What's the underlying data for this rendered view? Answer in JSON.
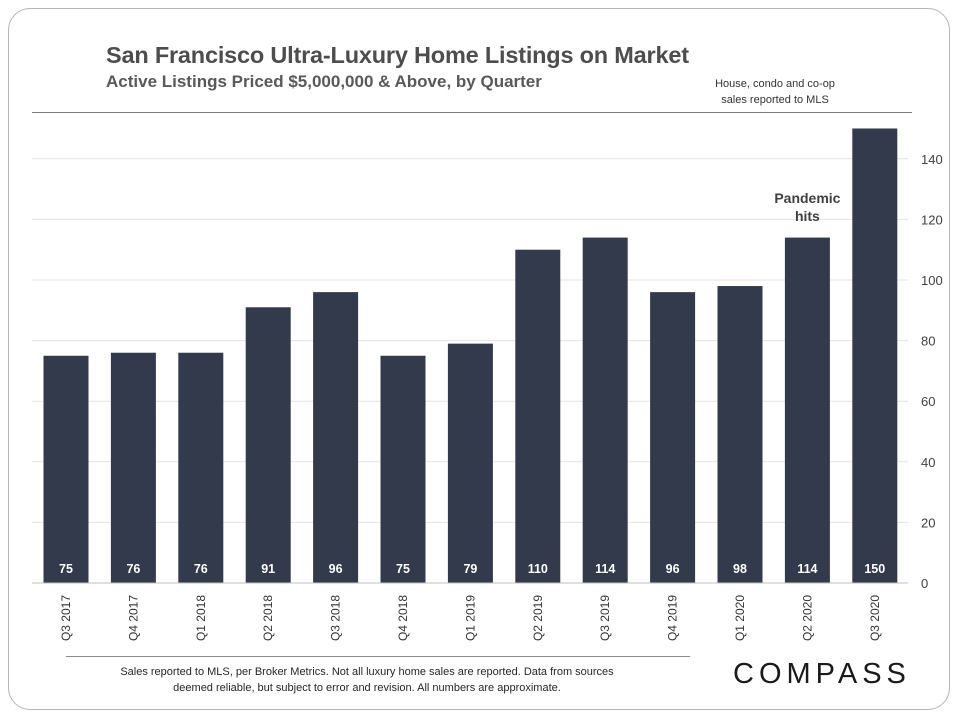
{
  "header": {
    "title": "San Francisco Ultra-Luxury Home Listings on Market",
    "subtitle": "Active Listings Priced $5,000,000 & Above, by Quarter",
    "source_note_line1": "House, condo and co-op",
    "source_note_line2": "sales reported to MLS"
  },
  "chart_data": {
    "type": "bar",
    "categories": [
      "Q3 2017",
      "Q4 2017",
      "Q1 2018",
      "Q2 2018",
      "Q3 2018",
      "Q4 2018",
      "Q1 2019",
      "Q2 2019",
      "Q3 2019",
      "Q4 2019",
      "Q1 2020",
      "Q2 2020",
      "Q3 2020"
    ],
    "values": [
      75,
      76,
      76,
      91,
      96,
      75,
      79,
      110,
      114,
      96,
      98,
      114,
      150
    ],
    "data_labels": [
      "75",
      "76",
      "76",
      "91",
      "96",
      "75",
      "79",
      "110",
      "114",
      "96",
      "98",
      "114",
      "150"
    ],
    "ylim": [
      0,
      150
    ],
    "yticks": [
      0,
      20,
      40,
      60,
      80,
      100,
      120,
      140
    ],
    "y_axis_side": "right",
    "grid": true,
    "bar_color": "#323a4b",
    "label_color": "#ffffff",
    "annotation": {
      "line1": "Pandemic",
      "line2": "hits",
      "category": "Q2 2020"
    }
  },
  "footer": {
    "footnote_line1": "Sales reported to MLS, per Broker Metrics.  Not all  luxury home sales are reported. Data from sources",
    "footnote_line2": "deemed reliable, but subject to error and revision. All numbers are approximate.",
    "logo": "COMPASS"
  }
}
